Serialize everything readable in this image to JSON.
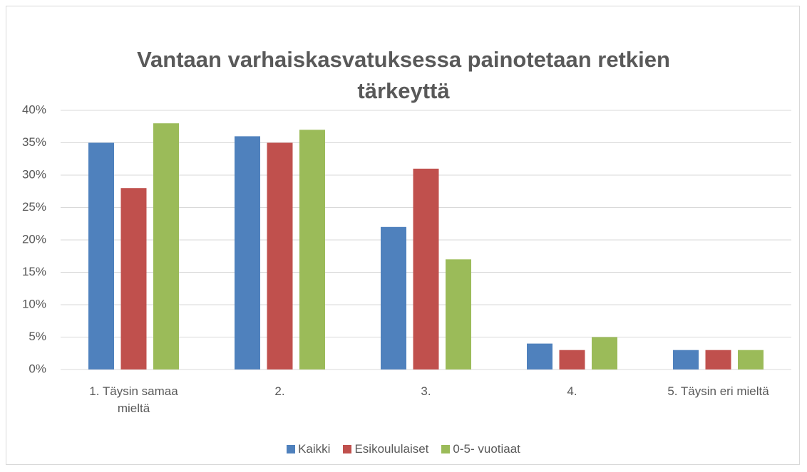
{
  "chart_data": {
    "type": "bar",
    "title": "Vantaan varhaiskasvatuksessa painotetaan retkien tärkeyttä",
    "categories": [
      "1. Täysin samaa mieltä",
      "2.",
      "3.",
      "4.",
      "5. Täysin eri mieltä"
    ],
    "series": [
      {
        "name": "Kaikki",
        "color": "#4f81bd",
        "values": [
          35,
          36,
          22,
          4,
          3
        ]
      },
      {
        "name": "Esikoululaiset",
        "color": "#c0504d",
        "values": [
          28,
          35,
          31,
          3,
          3
        ]
      },
      {
        "name": "0-5- vuotiaat",
        "color": "#9bbb59",
        "values": [
          38,
          37,
          17,
          5,
          3
        ]
      }
    ],
    "ylim": [
      0,
      40
    ],
    "yticks": [
      {
        "value": 0,
        "label": "0%"
      },
      {
        "value": 5,
        "label": "5%"
      },
      {
        "value": 10,
        "label": "10%"
      },
      {
        "value": 15,
        "label": "15%"
      },
      {
        "value": 20,
        "label": "20%"
      },
      {
        "value": 25,
        "label": "25%"
      },
      {
        "value": 30,
        "label": "30%"
      },
      {
        "value": 35,
        "label": "35%"
      },
      {
        "value": 40,
        "label": "40%"
      }
    ],
    "grid": true,
    "legend": "bottom"
  }
}
